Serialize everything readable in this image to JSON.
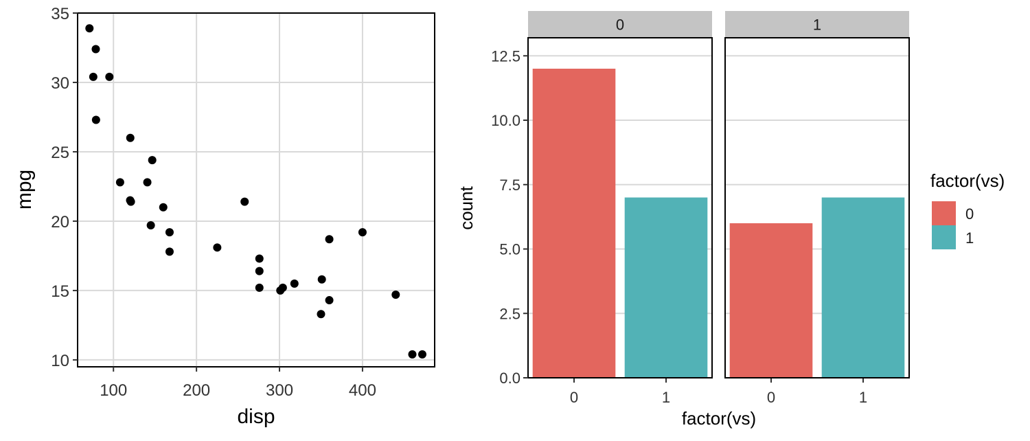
{
  "chart_data": [
    {
      "type": "scatter",
      "xlabel": "disp",
      "ylabel": "mpg",
      "xlim": [
        56.8,
        486.9
      ],
      "ylim": [
        9.5,
        35
      ],
      "xticks": [
        "100",
        "200",
        "300",
        "400"
      ],
      "xtick_values": [
        100,
        200,
        300,
        400
      ],
      "yticks": [
        "10",
        "15",
        "20",
        "25",
        "30",
        "35"
      ],
      "ytick_values": [
        10,
        15,
        20,
        25,
        30,
        35
      ],
      "grid": true,
      "point_color": "#000000",
      "points": [
        {
          "x": 71.1,
          "y": 33.9
        },
        {
          "x": 78.7,
          "y": 32.4
        },
        {
          "x": 75.7,
          "y": 30.4
        },
        {
          "x": 95.1,
          "y": 30.4
        },
        {
          "x": 79.0,
          "y": 27.3
        },
        {
          "x": 120.3,
          "y": 26.0
        },
        {
          "x": 146.7,
          "y": 24.4
        },
        {
          "x": 108.0,
          "y": 22.8
        },
        {
          "x": 140.8,
          "y": 22.8
        },
        {
          "x": 120.1,
          "y": 21.5
        },
        {
          "x": 121.0,
          "y": 21.4
        },
        {
          "x": 258.0,
          "y": 21.4
        },
        {
          "x": 160.0,
          "y": 21.0
        },
        {
          "x": 145.0,
          "y": 19.7
        },
        {
          "x": 167.6,
          "y": 19.2
        },
        {
          "x": 400.0,
          "y": 19.2
        },
        {
          "x": 360.0,
          "y": 18.7
        },
        {
          "x": 225.0,
          "y": 18.1
        },
        {
          "x": 167.6,
          "y": 17.8
        },
        {
          "x": 275.8,
          "y": 17.3
        },
        {
          "x": 275.8,
          "y": 16.4
        },
        {
          "x": 351.0,
          "y": 15.8
        },
        {
          "x": 318.0,
          "y": 15.5
        },
        {
          "x": 275.8,
          "y": 15.2
        },
        {
          "x": 304.0,
          "y": 15.2
        },
        {
          "x": 301.0,
          "y": 15.0
        },
        {
          "x": 440.0,
          "y": 14.7
        },
        {
          "x": 360.0,
          "y": 14.3
        },
        {
          "x": 350.0,
          "y": 13.3
        },
        {
          "x": 460.0,
          "y": 10.4
        },
        {
          "x": 472.0,
          "y": 10.4
        }
      ]
    },
    {
      "type": "bar",
      "xlabel": "factor(vs)",
      "ylabel": "count",
      "ylim": [
        0,
        13.2
      ],
      "yticks": [
        "0.0",
        "2.5",
        "5.0",
        "7.5",
        "10.0",
        "12.5"
      ],
      "ytick_values": [
        0,
        2.5,
        5,
        7.5,
        10,
        12.5
      ],
      "grid": true,
      "categories": [
        "0",
        "1"
      ],
      "facet_colors": {
        "strip": "#c4c4c4"
      },
      "facets": [
        {
          "label": "0",
          "values": [
            12,
            7
          ]
        },
        {
          "label": "1",
          "values": [
            6,
            7
          ]
        }
      ],
      "legend": {
        "title": "factor(vs)",
        "position": "right",
        "items": [
          {
            "label": "0",
            "color": "#e3665e"
          },
          {
            "label": "1",
            "color": "#52b2b6"
          }
        ]
      }
    }
  ]
}
